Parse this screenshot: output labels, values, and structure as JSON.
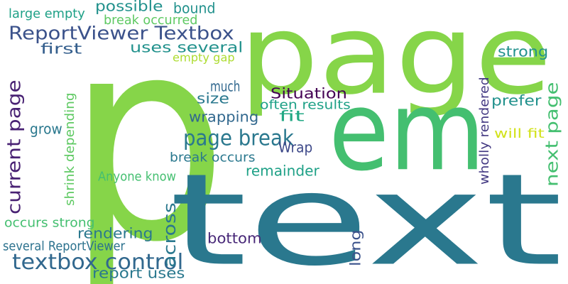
{
  "word_cloud": {
    "words": [
      {
        "text": "p",
        "color": "#86d549",
        "vertical": false
      },
      {
        "text": "page",
        "color": "#86d549",
        "vertical": false
      },
      {
        "text": "text",
        "color": "#2a788e",
        "vertical": false
      },
      {
        "text": "em",
        "color": "#44bf70",
        "vertical": false
      },
      {
        "text": "ReportViewer Textbox",
        "color": "#3b528b",
        "vertical": false
      },
      {
        "text": "textbox control",
        "color": "#31688e",
        "vertical": false
      },
      {
        "text": "current page",
        "color": "#482173",
        "vertical": true
      },
      {
        "text": "page break",
        "color": "#2a788e",
        "vertical": false
      },
      {
        "text": "next page",
        "color": "#44bf70",
        "vertical": true
      },
      {
        "text": "uses several",
        "color": "#21918c",
        "vertical": false
      },
      {
        "text": "possible",
        "color": "#21918c",
        "vertical": false
      },
      {
        "text": "bound",
        "color": "#21918c",
        "vertical": false
      },
      {
        "text": "break occurred",
        "color": "#5ec962",
        "vertical": false
      },
      {
        "text": "large empty",
        "color": "#1fa187",
        "vertical": false
      },
      {
        "text": "first",
        "color": "#355f8d",
        "vertical": false
      },
      {
        "text": "empty gap",
        "color": "#addc30",
        "vertical": false
      },
      {
        "text": "strong",
        "color": "#21918c",
        "vertical": false
      },
      {
        "text": "much",
        "color": "#31688e",
        "vertical": false
      },
      {
        "text": "Situation",
        "color": "#440154",
        "vertical": false
      },
      {
        "text": "size",
        "color": "#2a788e",
        "vertical": false
      },
      {
        "text": "prefer",
        "color": "#21918c",
        "vertical": false
      },
      {
        "text": "often results",
        "color": "#1fa187",
        "vertical": false
      },
      {
        "text": "wrapping",
        "color": "#31688e",
        "vertical": false
      },
      {
        "text": "fit",
        "color": "#22a884",
        "vertical": false
      },
      {
        "text": "will fit",
        "color": "#d2e21b",
        "vertical": false
      },
      {
        "text": "grow",
        "color": "#2a788e",
        "vertical": false
      },
      {
        "text": "Wrap",
        "color": "#3e4989",
        "vertical": false
      },
      {
        "text": "break occurs",
        "color": "#2a788e",
        "vertical": false
      },
      {
        "text": "shrink depending",
        "color": "#5ec962",
        "vertical": true
      },
      {
        "text": "remainder",
        "color": "#1fa187",
        "vertical": false
      },
      {
        "text": "wholly rendered",
        "color": "#443a83",
        "vertical": true
      },
      {
        "text": "Anyone know",
        "color": "#44bf70",
        "vertical": false
      },
      {
        "text": "across",
        "color": "#2a788e",
        "vertical": true
      },
      {
        "text": "occurs strong",
        "color": "#44bf70",
        "vertical": false
      },
      {
        "text": "rendering",
        "color": "#2a788e",
        "vertical": false
      },
      {
        "text": "bottom",
        "color": "#482878",
        "vertical": false
      },
      {
        "text": "several ReportViewer",
        "color": "#2c728e",
        "vertical": false
      },
      {
        "text": "long",
        "color": "#3b528b",
        "vertical": true
      },
      {
        "text": "report uses",
        "color": "#2a788e",
        "vertical": false
      }
    ]
  }
}
